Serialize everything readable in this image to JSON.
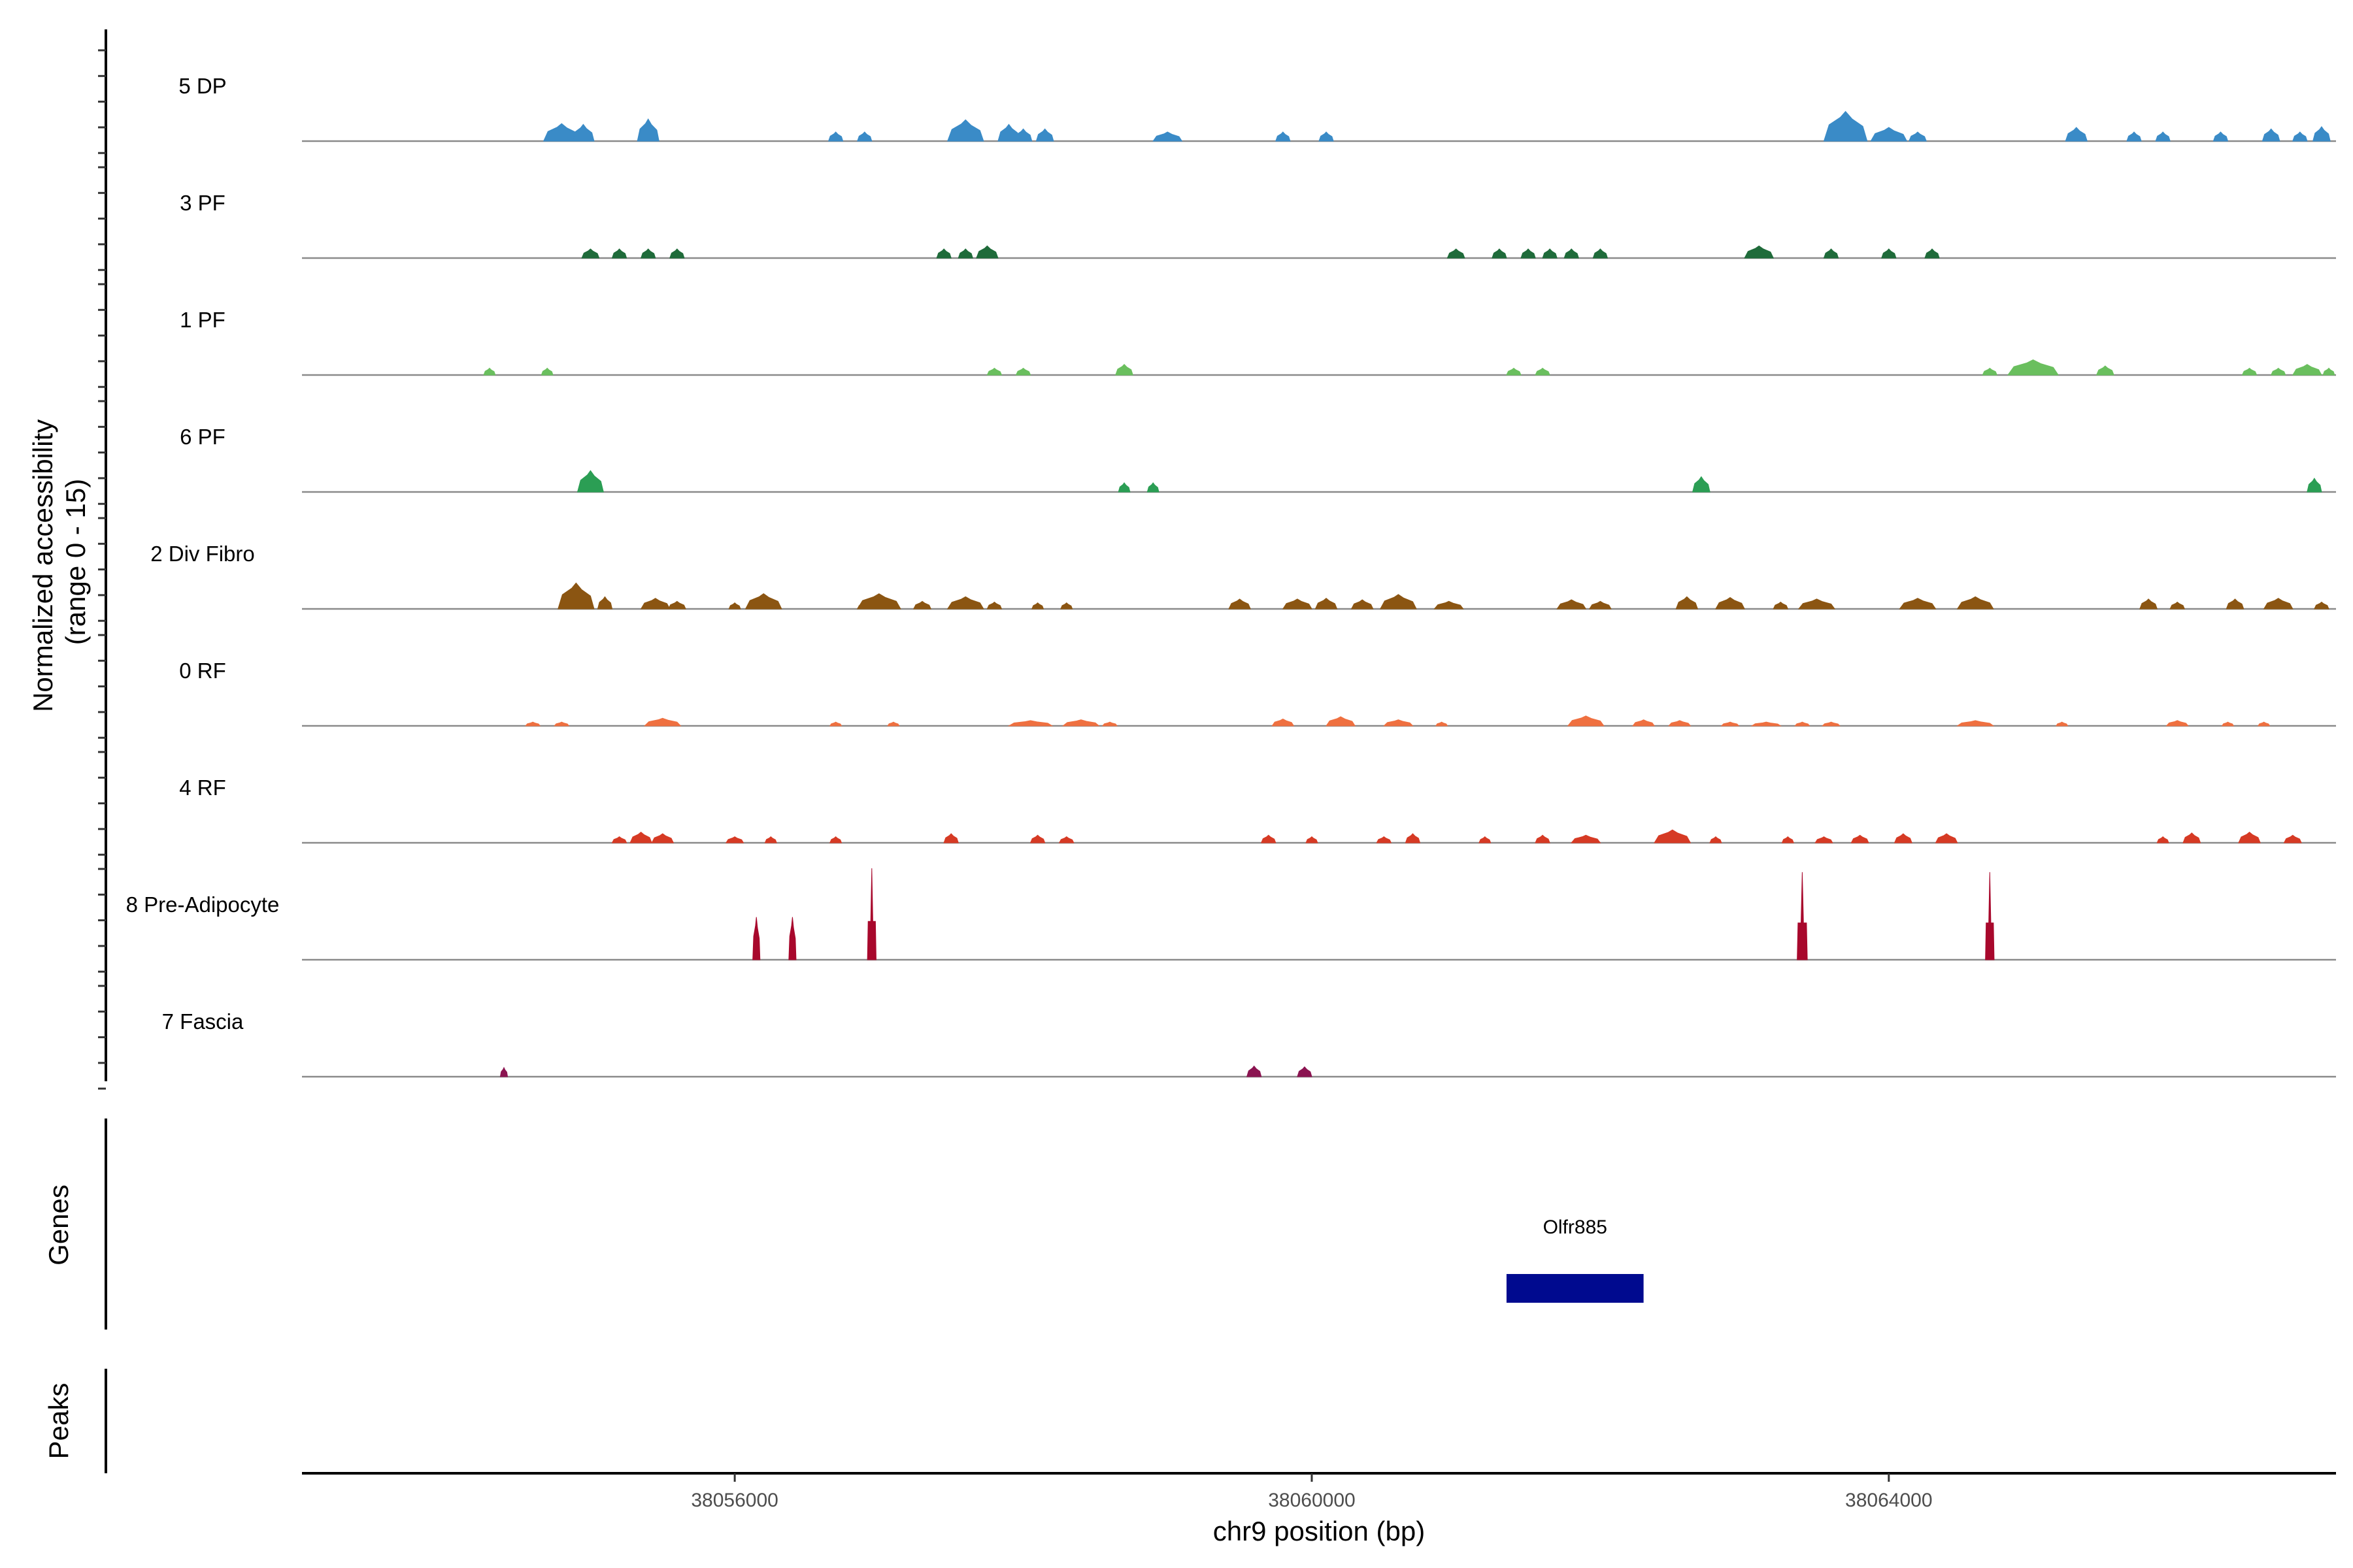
{
  "chart_data": {
    "type": "area",
    "title": "",
    "xlabel": "chr9 position (bp)",
    "ylabel": "Normalized accessibility\n(range 0 - 15)",
    "xlim": [
      38053000,
      38067100
    ],
    "ylim": [
      0,
      15
    ],
    "x_ticks": [
      38056000,
      38060000,
      38064000
    ],
    "x_tick_labels": [
      "38056000",
      "38060000",
      "38064000"
    ],
    "grid": false,
    "legend": "none",
    "series": [
      {
        "name": "5 DP",
        "color": "#3a8bc7",
        "peaks": [
          [
            38054.8,
            0.25,
            2.3
          ],
          [
            38054.95,
            0.15,
            2.2
          ],
          [
            38055.4,
            0.15,
            2.9
          ],
          [
            38056.7,
            0.1,
            1.2
          ],
          [
            38056.9,
            0.1,
            1.2
          ],
          [
            38057.6,
            0.25,
            2.8
          ],
          [
            38057.9,
            0.15,
            2.2
          ],
          [
            38058.0,
            0.12,
            1.6
          ],
          [
            38058.15,
            0.12,
            1.6
          ],
          [
            38059.0,
            0.2,
            1.2
          ],
          [
            38059.8,
            0.1,
            1.2
          ],
          [
            38060.1,
            0.1,
            1.2
          ],
          [
            38063.7,
            0.3,
            3.9
          ],
          [
            38064.0,
            0.25,
            1.8
          ],
          [
            38064.2,
            0.12,
            1.2
          ],
          [
            38065.3,
            0.15,
            1.8
          ],
          [
            38065.7,
            0.1,
            1.2
          ],
          [
            38065.9,
            0.1,
            1.2
          ],
          [
            38066.3,
            0.1,
            1.2
          ],
          [
            38066.65,
            0.12,
            1.6
          ],
          [
            38066.85,
            0.1,
            1.2
          ],
          [
            38067.0,
            0.12,
            1.9
          ]
        ]
      },
      {
        "name": "3 PF",
        "color": "#1f6b3a",
        "peaks": [
          [
            38055.0,
            0.12,
            1.2
          ],
          [
            38055.2,
            0.1,
            1.2
          ],
          [
            38055.4,
            0.1,
            1.2
          ],
          [
            38055.6,
            0.1,
            1.2
          ],
          [
            38057.45,
            0.1,
            1.2
          ],
          [
            38057.6,
            0.1,
            1.2
          ],
          [
            38057.75,
            0.15,
            1.6
          ],
          [
            38061.0,
            0.12,
            1.2
          ],
          [
            38061.3,
            0.1,
            1.2
          ],
          [
            38061.5,
            0.1,
            1.2
          ],
          [
            38061.65,
            0.1,
            1.2
          ],
          [
            38061.8,
            0.1,
            1.2
          ],
          [
            38062.0,
            0.1,
            1.2
          ],
          [
            38063.1,
            0.2,
            1.6
          ],
          [
            38063.6,
            0.1,
            1.2
          ],
          [
            38064.0,
            0.1,
            1.2
          ],
          [
            38064.3,
            0.1,
            1.2
          ]
        ]
      },
      {
        "name": "1 PF",
        "color": "#6abf5e",
        "peaks": [
          [
            38054.3,
            0.08,
            0.9
          ],
          [
            38054.7,
            0.08,
            0.9
          ],
          [
            38057.8,
            0.1,
            0.9
          ],
          [
            38058.0,
            0.1,
            0.9
          ],
          [
            38058.7,
            0.12,
            1.4
          ],
          [
            38061.4,
            0.1,
            0.9
          ],
          [
            38061.6,
            0.1,
            0.9
          ],
          [
            38064.7,
            0.1,
            0.9
          ],
          [
            38065.0,
            0.35,
            2.0
          ],
          [
            38065.5,
            0.12,
            1.2
          ],
          [
            38066.5,
            0.1,
            0.9
          ],
          [
            38066.7,
            0.1,
            0.9
          ],
          [
            38066.9,
            0.2,
            1.4
          ],
          [
            38067.05,
            0.08,
            0.9
          ]
        ]
      },
      {
        "name": "6 PF",
        "color": "#2b9e54",
        "peaks": [
          [
            38055.0,
            0.18,
            2.8
          ],
          [
            38058.7,
            0.08,
            1.2
          ],
          [
            38058.9,
            0.08,
            1.2
          ],
          [
            38062.7,
            0.12,
            2.0
          ],
          [
            38066.95,
            0.1,
            1.8
          ]
        ]
      },
      {
        "name": "2 Div Fibro",
        "color": "#8b5512",
        "peaks": [
          [
            38054.9,
            0.25,
            3.4
          ],
          [
            38055.1,
            0.1,
            1.6
          ],
          [
            38055.45,
            0.2,
            1.4
          ],
          [
            38055.6,
            0.12,
            1.0
          ],
          [
            38056.0,
            0.08,
            0.8
          ],
          [
            38056.2,
            0.25,
            2.0
          ],
          [
            38056.9,
            0.1,
            0.8
          ],
          [
            38057.0,
            0.3,
            2.0
          ],
          [
            38057.3,
            0.12,
            1.0
          ],
          [
            38057.6,
            0.25,
            1.6
          ],
          [
            38057.8,
            0.1,
            0.9
          ],
          [
            38058.1,
            0.08,
            0.8
          ],
          [
            38058.3,
            0.08,
            0.8
          ],
          [
            38059.5,
            0.15,
            1.3
          ],
          [
            38059.9,
            0.2,
            1.3
          ],
          [
            38060.1,
            0.15,
            1.4
          ],
          [
            38060.35,
            0.15,
            1.2
          ],
          [
            38060.6,
            0.25,
            1.9
          ],
          [
            38060.95,
            0.2,
            1.0
          ],
          [
            38061.8,
            0.2,
            1.2
          ],
          [
            38062.0,
            0.15,
            1.0
          ],
          [
            38062.6,
            0.15,
            1.6
          ],
          [
            38062.9,
            0.2,
            1.5
          ],
          [
            38063.25,
            0.1,
            0.9
          ],
          [
            38063.5,
            0.25,
            1.3
          ],
          [
            38064.2,
            0.25,
            1.4
          ],
          [
            38064.6,
            0.25,
            1.6
          ],
          [
            38065.8,
            0.12,
            1.3
          ],
          [
            38066.0,
            0.1,
            0.9
          ],
          [
            38066.4,
            0.12,
            1.3
          ],
          [
            38066.7,
            0.2,
            1.4
          ],
          [
            38067.0,
            0.1,
            0.9
          ]
        ]
      },
      {
        "name": "0 RF",
        "color": "#ef7040",
        "peaks": [
          [
            38054.6,
            0.1,
            0.5
          ],
          [
            38054.8,
            0.1,
            0.5
          ],
          [
            38055.5,
            0.25,
            1.0
          ],
          [
            38056.7,
            0.08,
            0.5
          ],
          [
            38057.1,
            0.08,
            0.5
          ],
          [
            38058.05,
            0.3,
            0.7
          ],
          [
            38058.4,
            0.25,
            0.8
          ],
          [
            38058.6,
            0.1,
            0.5
          ],
          [
            38059.8,
            0.15,
            0.9
          ],
          [
            38060.2,
            0.2,
            1.2
          ],
          [
            38060.6,
            0.2,
            0.8
          ],
          [
            38060.9,
            0.08,
            0.5
          ],
          [
            38061.9,
            0.25,
            1.3
          ],
          [
            38062.3,
            0.15,
            0.8
          ],
          [
            38062.55,
            0.15,
            0.7
          ],
          [
            38062.9,
            0.12,
            0.5
          ],
          [
            38063.15,
            0.2,
            0.5
          ],
          [
            38063.4,
            0.1,
            0.5
          ],
          [
            38063.6,
            0.12,
            0.5
          ],
          [
            38064.6,
            0.25,
            0.7
          ],
          [
            38065.2,
            0.08,
            0.5
          ],
          [
            38066.0,
            0.15,
            0.7
          ],
          [
            38066.35,
            0.08,
            0.5
          ],
          [
            38066.6,
            0.08,
            0.5
          ]
        ]
      },
      {
        "name": "4 RF",
        "color": "#d63a24",
        "peaks": [
          [
            38055.2,
            0.1,
            0.8
          ],
          [
            38055.35,
            0.15,
            1.4
          ],
          [
            38055.5,
            0.15,
            1.2
          ],
          [
            38056.0,
            0.12,
            0.8
          ],
          [
            38056.25,
            0.08,
            0.8
          ],
          [
            38056.7,
            0.08,
            0.8
          ],
          [
            38057.5,
            0.1,
            1.2
          ],
          [
            38058.1,
            0.1,
            1.0
          ],
          [
            38058.3,
            0.1,
            0.8
          ],
          [
            38059.7,
            0.1,
            1.0
          ],
          [
            38060.0,
            0.08,
            0.8
          ],
          [
            38060.5,
            0.1,
            0.8
          ],
          [
            38060.7,
            0.1,
            1.2
          ],
          [
            38061.2,
            0.08,
            0.8
          ],
          [
            38061.6,
            0.1,
            1.0
          ],
          [
            38061.9,
            0.2,
            1.0
          ],
          [
            38062.5,
            0.25,
            1.7
          ],
          [
            38062.8,
            0.08,
            0.8
          ],
          [
            38063.3,
            0.08,
            0.8
          ],
          [
            38063.55,
            0.12,
            0.8
          ],
          [
            38063.8,
            0.12,
            1.0
          ],
          [
            38064.1,
            0.12,
            1.2
          ],
          [
            38064.4,
            0.15,
            1.2
          ],
          [
            38065.9,
            0.08,
            0.8
          ],
          [
            38066.1,
            0.12,
            1.3
          ],
          [
            38066.5,
            0.15,
            1.4
          ],
          [
            38066.8,
            0.12,
            1.0
          ]
        ]
      },
      {
        "name": "8 Pre-Adipocyte",
        "color": "#a8082c",
        "peaks": [
          [
            38056.15,
            0.05,
            5.6
          ],
          [
            38056.4,
            0.05,
            5.6
          ],
          [
            38056.95,
            0.06,
            12.0
          ],
          [
            38063.4,
            0.07,
            11.5
          ],
          [
            38064.7,
            0.06,
            11.5
          ]
        ]
      },
      {
        "name": "7 Fascia",
        "color": "#8b1451",
        "peaks": [
          [
            38054.4,
            0.05,
            1.2
          ],
          [
            38059.6,
            0.1,
            1.4
          ],
          [
            38059.95,
            0.1,
            1.3
          ]
        ]
      }
    ],
    "genes": [
      {
        "name": "Olfr885",
        "start": 38061350,
        "end": 38062300,
        "color": "#000a8f"
      }
    ],
    "panels": [
      "Genes",
      "Peaks"
    ]
  }
}
